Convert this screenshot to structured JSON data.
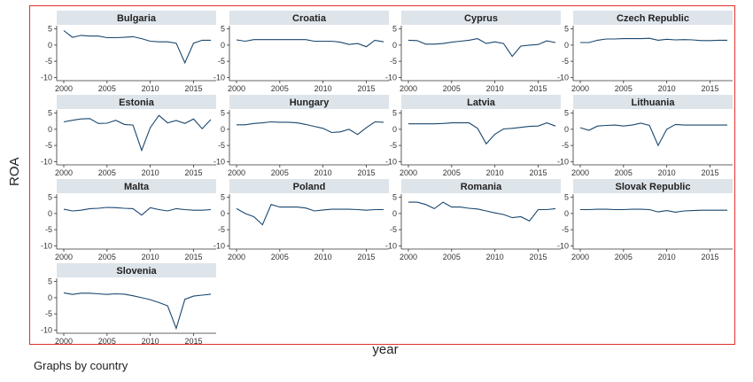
{
  "figure": {
    "y_axis_label": "ROA",
    "x_axis_label": "year",
    "note": "Graphs by country"
  },
  "colors": {
    "panel_header": "#dde4ea",
    "line": "#1a476f",
    "border": "#e0312c",
    "axis": "#333333"
  },
  "chart_data": {
    "type": "line",
    "x_ticks": [
      2000,
      2005,
      2010,
      2015
    ],
    "y_ticks": [
      5,
      0,
      -5,
      -10
    ],
    "y_tick_labels": [
      "5",
      "0",
      "-5",
      "-10"
    ],
    "xlim": [
      2000,
      2017
    ],
    "ylim": [
      -11,
      6
    ],
    "panels": [
      {
        "name": "Bulgaria",
        "x": [
          2000,
          2001,
          2002,
          2003,
          2004,
          2005,
          2006,
          2007,
          2008,
          2009,
          2010,
          2011,
          2012,
          2013,
          2014,
          2015,
          2016,
          2017
        ],
        "values": [
          4.5,
          2.4,
          3.0,
          2.8,
          2.8,
          2.3,
          2.3,
          2.4,
          2.6,
          2.0,
          1.2,
          1.0,
          1.0,
          0.6,
          -5.5,
          0.6,
          1.5,
          1.5
        ]
      },
      {
        "name": "Croatia",
        "x": [
          2000,
          2001,
          2002,
          2003,
          2004,
          2005,
          2006,
          2007,
          2008,
          2009,
          2010,
          2011,
          2012,
          2013,
          2014,
          2015,
          2016,
          2017
        ],
        "values": [
          1.6,
          1.2,
          1.7,
          1.7,
          1.7,
          1.7,
          1.7,
          1.7,
          1.7,
          1.2,
          1.2,
          1.2,
          0.9,
          0.2,
          0.5,
          -0.5,
          1.5,
          1.0
        ]
      },
      {
        "name": "Cyprus",
        "x": [
          2000,
          2001,
          2002,
          2003,
          2004,
          2005,
          2006,
          2007,
          2008,
          2009,
          2010,
          2011,
          2012,
          2013,
          2014,
          2015,
          2016,
          2017
        ],
        "values": [
          1.5,
          1.4,
          0.3,
          0.3,
          0.5,
          0.9,
          1.2,
          1.5,
          2.0,
          0.5,
          1.0,
          0.5,
          -3.5,
          -0.3,
          0.0,
          0.2,
          1.3,
          0.8
        ]
      },
      {
        "name": "Czech Republic",
        "x": [
          2000,
          2001,
          2002,
          2003,
          2004,
          2005,
          2006,
          2007,
          2008,
          2009,
          2010,
          2011,
          2012,
          2013,
          2014,
          2015,
          2016,
          2017
        ],
        "values": [
          0.8,
          0.8,
          1.5,
          1.9,
          1.9,
          2.0,
          2.0,
          2.0,
          2.1,
          1.5,
          1.8,
          1.6,
          1.7,
          1.6,
          1.4,
          1.4,
          1.5,
          1.5
        ]
      },
      {
        "name": "Estonia",
        "x": [
          2000,
          2001,
          2002,
          2003,
          2004,
          2005,
          2006,
          2007,
          2008,
          2009,
          2010,
          2011,
          2012,
          2013,
          2014,
          2015,
          2016,
          2017
        ],
        "values": [
          2.3,
          2.8,
          3.2,
          3.3,
          1.8,
          1.9,
          2.8,
          1.5,
          1.3,
          -6.5,
          0.5,
          4.3,
          2.0,
          2.7,
          1.8,
          3.2,
          0.2,
          3.0
        ]
      },
      {
        "name": "Hungary",
        "x": [
          2000,
          2001,
          2002,
          2003,
          2004,
          2005,
          2006,
          2007,
          2008,
          2009,
          2010,
          2011,
          2012,
          2013,
          2014,
          2015,
          2016,
          2017
        ],
        "values": [
          1.4,
          1.4,
          1.8,
          2.0,
          2.3,
          2.2,
          2.2,
          2.0,
          1.5,
          0.9,
          0.3,
          -1.0,
          -0.8,
          0.0,
          -1.6,
          0.5,
          2.3,
          2.2
        ]
      },
      {
        "name": "Latvia",
        "x": [
          2000,
          2001,
          2002,
          2003,
          2004,
          2005,
          2006,
          2007,
          2008,
          2009,
          2010,
          2011,
          2012,
          2013,
          2014,
          2015,
          2016,
          2017
        ],
        "values": [
          1.7,
          1.7,
          1.7,
          1.7,
          1.8,
          2.0,
          2.0,
          2.0,
          0.3,
          -4.5,
          -1.5,
          0.1,
          0.3,
          0.6,
          0.9,
          1.0,
          2.0,
          1.0
        ]
      },
      {
        "name": "Lithuania",
        "x": [
          2000,
          2001,
          2002,
          2003,
          2004,
          2005,
          2006,
          2007,
          2008,
          2009,
          2010,
          2011,
          2012,
          2013,
          2014,
          2015,
          2016,
          2017
        ],
        "values": [
          0.5,
          -0.3,
          1.0,
          1.2,
          1.3,
          1.0,
          1.3,
          1.9,
          1.2,
          -5.0,
          0.0,
          1.5,
          1.3,
          1.3,
          1.3,
          1.3,
          1.3,
          1.3
        ]
      },
      {
        "name": "Malta",
        "x": [
          2000,
          2001,
          2002,
          2003,
          2004,
          2005,
          2006,
          2007,
          2008,
          2009,
          2010,
          2011,
          2012,
          2013,
          2014,
          2015,
          2016,
          2017
        ],
        "values": [
          1.3,
          0.8,
          1.0,
          1.5,
          1.6,
          1.9,
          1.8,
          1.6,
          1.5,
          -0.5,
          1.8,
          1.2,
          0.8,
          1.5,
          1.2,
          1.0,
          1.0,
          1.2
        ]
      },
      {
        "name": "Poland",
        "x": [
          2000,
          2001,
          2002,
          2003,
          2004,
          2005,
          2006,
          2007,
          2008,
          2009,
          2010,
          2011,
          2012,
          2013,
          2014,
          2015,
          2016,
          2017
        ],
        "values": [
          1.5,
          0.0,
          -1.0,
          -3.5,
          2.8,
          2.0,
          2.0,
          2.0,
          1.7,
          0.8,
          1.1,
          1.3,
          1.3,
          1.3,
          1.2,
          1.0,
          1.2,
          1.2
        ]
      },
      {
        "name": "Romania",
        "x": [
          2000,
          2001,
          2002,
          2003,
          2004,
          2005,
          2006,
          2007,
          2008,
          2009,
          2010,
          2011,
          2012,
          2013,
          2014,
          2015,
          2016,
          2017
        ],
        "values": [
          3.5,
          3.5,
          2.8,
          1.5,
          3.5,
          2.0,
          2.0,
          1.6,
          1.4,
          0.8,
          0.2,
          -0.3,
          -1.3,
          -1.0,
          -2.3,
          1.2,
          1.2,
          1.5
        ]
      },
      {
        "name": "Slovak Republic",
        "x": [
          2000,
          2001,
          2002,
          2003,
          2004,
          2005,
          2006,
          2007,
          2008,
          2009,
          2010,
          2011,
          2012,
          2013,
          2014,
          2015,
          2016,
          2017
        ],
        "values": [
          1.2,
          1.2,
          1.3,
          1.3,
          1.2,
          1.2,
          1.3,
          1.3,
          1.2,
          0.5,
          0.9,
          0.4,
          0.8,
          0.9,
          1.0,
          1.0,
          1.0,
          1.0
        ]
      },
      {
        "name": "Slovenia",
        "x": [
          2000,
          2001,
          2002,
          2003,
          2004,
          2005,
          2006,
          2007,
          2008,
          2009,
          2010,
          2011,
          2012,
          2013,
          2014,
          2015,
          2016,
          2017
        ],
        "values": [
          1.5,
          1.0,
          1.4,
          1.4,
          1.2,
          1.0,
          1.2,
          1.1,
          0.6,
          0.0,
          -0.6,
          -1.5,
          -2.5,
          -9.5,
          -0.5,
          0.5,
          0.8,
          1.1
        ]
      }
    ]
  }
}
